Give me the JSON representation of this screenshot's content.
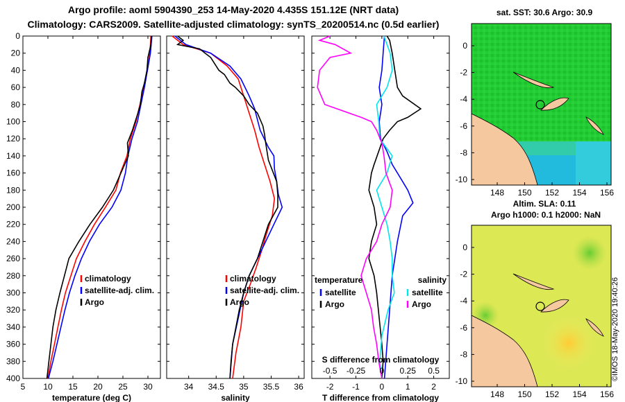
{
  "header": {
    "line1": "Argo profile: aoml 5904390_253 14-May-2020 4.435S 151.12E (NRT data)",
    "line2": "Climatology: CARS2009. Satellite-adjusted climatology: synTS_20200514.nc (0.5d earlier)"
  },
  "colors": {
    "climatology": "#ff0000",
    "satellite": "#0000ff",
    "argo": "#000000",
    "t_diff": "#ff00ff",
    "s_diff": "#00e5ee",
    "land": "#f5c8a0"
  },
  "chart_data": [
    {
      "id": "temperature",
      "type": "line",
      "xlabel": "temperature (deg C)",
      "xlim": [
        5,
        32.5
      ],
      "ylim": [
        400,
        0
      ],
      "xticks": [
        5,
        10,
        15,
        20,
        25,
        30
      ],
      "yticks": [
        0,
        20,
        40,
        60,
        80,
        100,
        120,
        140,
        160,
        180,
        200,
        220,
        240,
        260,
        280,
        300,
        320,
        340,
        360,
        380,
        400
      ],
      "legend": [
        "climatology",
        "satellite-adj. clim.",
        "Argo"
      ],
      "series": [
        {
          "name": "climatology",
          "color": "#ff0000",
          "points": [
            [
              30.6,
              0
            ],
            [
              30.4,
              20
            ],
            [
              29.9,
              40
            ],
            [
              29.1,
              60
            ],
            [
              28.4,
              80
            ],
            [
              27.6,
              100
            ],
            [
              26.5,
              120
            ],
            [
              25.8,
              140
            ],
            [
              24.5,
              160
            ],
            [
              23.6,
              180
            ],
            [
              21.5,
              200
            ],
            [
              19.3,
              220
            ],
            [
              17.4,
              240
            ],
            [
              15.7,
              260
            ],
            [
              14.6,
              280
            ],
            [
              13.5,
              300
            ],
            [
              12.7,
              320
            ],
            [
              12.0,
              340
            ],
            [
              11.3,
              360
            ],
            [
              10.6,
              380
            ],
            [
              10.0,
              400
            ]
          ]
        },
        {
          "name": "satellite-adj. clim.",
          "color": "#0000ff",
          "points": [
            [
              30.8,
              0
            ],
            [
              30.5,
              20
            ],
            [
              29.9,
              40
            ],
            [
              29.3,
              60
            ],
            [
              28.6,
              80
            ],
            [
              27.9,
              100
            ],
            [
              26.8,
              120
            ],
            [
              26.0,
              140
            ],
            [
              25.5,
              160
            ],
            [
              24.6,
              180
            ],
            [
              22.8,
              200
            ],
            [
              20.3,
              220
            ],
            [
              18.3,
              240
            ],
            [
              16.7,
              260
            ],
            [
              15.4,
              280
            ],
            [
              14.3,
              300
            ],
            [
              13.4,
              320
            ],
            [
              12.6,
              340
            ],
            [
              11.8,
              360
            ],
            [
              11.0,
              380
            ],
            [
              10.1,
              400
            ]
          ]
        },
        {
          "name": "Argo",
          "color": "#000000",
          "points": [
            [
              30.7,
              0
            ],
            [
              30.6,
              10
            ],
            [
              30.0,
              25
            ],
            [
              29.8,
              40
            ],
            [
              29.3,
              55
            ],
            [
              28.8,
              65
            ],
            [
              28.5,
              80
            ],
            [
              28.0,
              90
            ],
            [
              26.9,
              110
            ],
            [
              25.9,
              125
            ],
            [
              26.1,
              140
            ],
            [
              24.6,
              160
            ],
            [
              23.1,
              180
            ],
            [
              20.9,
              200
            ],
            [
              18.4,
              220
            ],
            [
              16.2,
              240
            ],
            [
              14.2,
              260
            ],
            [
              13.3,
              280
            ],
            [
              12.4,
              300
            ],
            [
              11.6,
              320
            ],
            [
              11.0,
              340
            ],
            [
              10.6,
              360
            ],
            [
              10.2,
              380
            ],
            [
              9.8,
              400
            ]
          ]
        }
      ]
    },
    {
      "id": "salinity",
      "type": "line",
      "xlabel": "salinity",
      "xlim": [
        33.6,
        36.1
      ],
      "ylim": [
        400,
        0
      ],
      "xticks": [
        34,
        34.5,
        35,
        35.5,
        36
      ],
      "legend": [
        "climatology",
        "satellite-adj. clim.",
        "Argo"
      ],
      "series": [
        {
          "name": "climatology",
          "color": "#ff0000",
          "points": [
            [
              33.7,
              0
            ],
            [
              33.9,
              10
            ],
            [
              34.4,
              20
            ],
            [
              34.7,
              35
            ],
            [
              34.9,
              50
            ],
            [
              35.0,
              70
            ],
            [
              35.1,
              90
            ],
            [
              35.2,
              110
            ],
            [
              35.28,
              130
            ],
            [
              35.38,
              150
            ],
            [
              35.48,
              170
            ],
            [
              35.56,
              190
            ],
            [
              35.52,
              210
            ],
            [
              35.42,
              230
            ],
            [
              35.33,
              250
            ],
            [
              35.23,
              270
            ],
            [
              35.12,
              290
            ],
            [
              35.0,
              310
            ],
            [
              34.95,
              340
            ],
            [
              34.86,
              370
            ],
            [
              34.8,
              400
            ]
          ]
        },
        {
          "name": "satellite-adj. clim.",
          "color": "#0000ff",
          "points": [
            [
              33.75,
              0
            ],
            [
              33.95,
              10
            ],
            [
              34.4,
              20
            ],
            [
              34.75,
              35
            ],
            [
              34.95,
              50
            ],
            [
              35.1,
              70
            ],
            [
              35.2,
              85
            ],
            [
              35.3,
              110
            ],
            [
              35.45,
              130
            ],
            [
              35.55,
              140
            ],
            [
              35.56,
              155
            ],
            [
              35.6,
              170
            ],
            [
              35.63,
              185
            ],
            [
              35.7,
              200
            ],
            [
              35.55,
              220
            ],
            [
              35.4,
              240
            ],
            [
              35.25,
              260
            ],
            [
              35.1,
              280
            ],
            [
              35.0,
              300
            ],
            [
              34.9,
              330
            ],
            [
              34.8,
              360
            ],
            [
              34.75,
              400
            ]
          ]
        },
        {
          "name": "Argo",
          "color": "#000000",
          "points": [
            [
              33.8,
              0
            ],
            [
              33.9,
              5
            ],
            [
              33.8,
              10
            ],
            [
              34.2,
              15
            ],
            [
              34.3,
              20
            ],
            [
              34.4,
              25
            ],
            [
              34.55,
              40
            ],
            [
              34.65,
              45
            ],
            [
              34.75,
              55
            ],
            [
              34.85,
              60
            ],
            [
              35.0,
              70
            ],
            [
              35.1,
              80
            ],
            [
              35.25,
              90
            ],
            [
              35.35,
              105
            ],
            [
              35.38,
              115
            ],
            [
              35.4,
              125
            ],
            [
              35.45,
              145
            ],
            [
              35.6,
              170
            ],
            [
              35.62,
              185
            ],
            [
              35.62,
              200
            ],
            [
              35.45,
              220
            ],
            [
              35.35,
              240
            ],
            [
              35.25,
              260
            ],
            [
              35.1,
              280
            ],
            [
              35.0,
              300
            ],
            [
              34.92,
              320
            ],
            [
              34.86,
              340
            ],
            [
              34.8,
              360
            ],
            [
              34.77,
              380
            ],
            [
              34.75,
              400
            ]
          ]
        }
      ]
    },
    {
      "id": "difference",
      "type": "line",
      "xlabel": "T difference from climatology",
      "top_label": "S difference from climatology",
      "xlim": [
        -2.7,
        2.6
      ],
      "ylim": [
        400,
        0
      ],
      "xticks": [
        -2,
        -1,
        0,
        1,
        2
      ],
      "s_xlim": [
        -0.675,
        0.65
      ],
      "s_ticks": [
        "-0.5",
        "-0.25",
        "0",
        "0.25",
        "0.5"
      ],
      "legend_left": {
        "title": "temperature",
        "items": [
          "satellite",
          "Argo"
        ]
      },
      "legend_right": {
        "title": "salinity",
        "items": [
          "satellite",
          "Argo"
        ]
      },
      "series": [
        {
          "name": "temperature satellite",
          "color": "#0000ff",
          "points": [
            [
              0.1,
              0
            ],
            [
              0.05,
              20
            ],
            [
              0.0,
              40
            ],
            [
              -0.1,
              60
            ],
            [
              0.0,
              80
            ],
            [
              -0.1,
              100
            ],
            [
              -0.05,
              120
            ],
            [
              0.2,
              135
            ],
            [
              0.4,
              150
            ],
            [
              0.8,
              170
            ],
            [
              1.0,
              180
            ],
            [
              1.2,
              195
            ],
            [
              0.8,
              210
            ],
            [
              0.6,
              240
            ],
            [
              0.4,
              280
            ],
            [
              0.3,
              320
            ],
            [
              0.2,
              360
            ],
            [
              0.1,
              400
            ]
          ]
        },
        {
          "name": "temperature Argo",
          "color": "#000000",
          "points": [
            [
              0.2,
              0
            ],
            [
              0.3,
              5
            ],
            [
              0.4,
              20
            ],
            [
              0.5,
              40
            ],
            [
              0.6,
              60
            ],
            [
              0.8,
              70
            ],
            [
              1.5,
              85
            ],
            [
              1.0,
              95
            ],
            [
              0.6,
              100
            ],
            [
              0.3,
              110
            ],
            [
              0.05,
              120
            ],
            [
              -0.3,
              150
            ],
            [
              -0.4,
              160
            ],
            [
              -0.5,
              180
            ],
            [
              -0.3,
              200
            ],
            [
              -0.2,
              220
            ],
            [
              -0.4,
              240
            ],
            [
              -0.5,
              260
            ],
            [
              -0.3,
              280
            ],
            [
              -0.2,
              300
            ],
            [
              -0.1,
              330
            ],
            [
              0.0,
              360
            ],
            [
              0.05,
              380
            ],
            [
              0.0,
              400
            ]
          ]
        },
        {
          "name": "salinity satellite",
          "color": "#00e5ee",
          "points": [
            [
              0.02,
              0
            ],
            [
              0.08,
              20
            ],
            [
              0.1,
              40
            ],
            [
              0.05,
              60
            ],
            [
              -0.05,
              80
            ],
            [
              -0.03,
              100
            ],
            [
              -0.02,
              120
            ],
            [
              0.1,
              140
            ],
            [
              0.05,
              160
            ],
            [
              -0.05,
              180
            ],
            [
              0.0,
              200
            ],
            [
              0.05,
              220
            ],
            [
              0.08,
              240
            ],
            [
              0.1,
              260
            ],
            [
              0.1,
              280
            ],
            [
              0.12,
              300
            ],
            [
              0.06,
              320
            ],
            [
              0.0,
              350
            ],
            [
              -0.02,
              380
            ],
            [
              0.0,
              400
            ]
          ]
        },
        {
          "name": "salinity Argo",
          "color": "#ff00ff",
          "points": [
            [
              -0.5,
              0
            ],
            [
              -0.6,
              5
            ],
            [
              -0.45,
              10
            ],
            [
              -0.3,
              20
            ],
            [
              -0.5,
              25
            ],
            [
              -0.6,
              40
            ],
            [
              -0.62,
              60
            ],
            [
              -0.55,
              80
            ],
            [
              -0.2,
              95
            ],
            [
              -0.1,
              100
            ],
            [
              -0.05,
              110
            ],
            [
              0.0,
              125
            ],
            [
              0.02,
              140
            ],
            [
              0.04,
              160
            ],
            [
              0.1,
              180
            ],
            [
              0.08,
              200
            ],
            [
              0.0,
              220
            ],
            [
              -0.05,
              240
            ],
            [
              -0.15,
              260
            ],
            [
              -0.2,
              280
            ],
            [
              -0.15,
              300
            ],
            [
              -0.1,
              320
            ],
            [
              -0.08,
              340
            ],
            [
              -0.05,
              360
            ],
            [
              -0.03,
              380
            ],
            [
              0.0,
              400
            ]
          ]
        }
      ]
    }
  ],
  "maps": [
    {
      "id": "sst-map",
      "title": "sat. SST: 30.6 Argo: 30.9",
      "subtitle": "Altim. SLA: 0.11",
      "xticks": [
        "148",
        "150",
        "152",
        "154",
        "156"
      ],
      "yticks": [
        "0",
        "-2",
        "-4",
        "-6",
        "-8",
        "-10"
      ]
    },
    {
      "id": "h-map",
      "title": "Argo h1000: 0.1 h2000: NaN",
      "xticks": [
        "148",
        "150",
        "152",
        "154",
        "156"
      ],
      "yticks": [
        "0",
        "-2",
        "-4",
        "-6",
        "-8",
        "-10"
      ]
    }
  ],
  "stamp": "©IMOS 18-May-2020 19:40:26"
}
